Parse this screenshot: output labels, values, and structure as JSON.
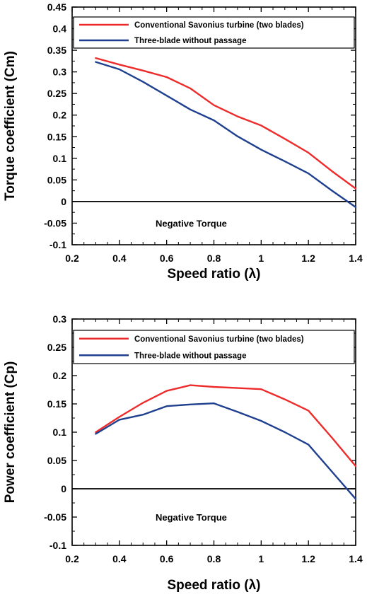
{
  "chart_data": [
    {
      "type": "line",
      "xlabel": "Speed ratio (λ)",
      "ylabel": "Torque coefficient (Cm)",
      "xlim": [
        0.2,
        1.4
      ],
      "ylim": [
        -0.1,
        0.45
      ],
      "xticks": [
        "0.2",
        "0.4",
        "0.6",
        "0.8",
        "1",
        "1.2",
        "1.4"
      ],
      "yticks": [
        "-0.1",
        "-0.05",
        "0",
        "0.05",
        "0.1",
        "0.15",
        "0.2",
        "0.25",
        "0.3",
        "0.35",
        "0.4",
        "0.45"
      ],
      "xtick_values": [
        0.2,
        0.4,
        0.6,
        0.8,
        1.0,
        1.2,
        1.4
      ],
      "ytick_values": [
        -0.1,
        -0.05,
        0,
        0.05,
        0.1,
        0.15,
        0.2,
        0.25,
        0.3,
        0.35,
        0.4,
        0.45
      ],
      "grid": false,
      "legend_position": "top",
      "reference_line_y": 0,
      "annotation": "Negative Torque",
      "series": [
        {
          "name": "Conventional Savonius turbine (two blades)",
          "color": "#ee2b2b",
          "x": [
            0.3,
            0.4,
            0.5,
            0.6,
            0.7,
            0.8,
            0.9,
            1.0,
            1.1,
            1.2,
            1.3,
            1.4
          ],
          "y": [
            0.332,
            0.317,
            0.303,
            0.288,
            0.262,
            0.223,
            0.197,
            0.176,
            0.145,
            0.113,
            0.07,
            0.03
          ]
        },
        {
          "name": "Three-blade without passage",
          "color": "#1f3f8f",
          "x": [
            0.3,
            0.4,
            0.5,
            0.6,
            0.7,
            0.8,
            0.9,
            1.0,
            1.1,
            1.2,
            1.3,
            1.4
          ],
          "y": [
            0.323,
            0.306,
            0.277,
            0.245,
            0.213,
            0.188,
            0.151,
            0.12,
            0.093,
            0.065,
            0.025,
            -0.013
          ]
        }
      ]
    },
    {
      "type": "line",
      "xlabel": "Speed ratio (λ)",
      "ylabel": "Power coefficient (Cp)",
      "xlim": [
        0.2,
        1.4
      ],
      "ylim": [
        -0.1,
        0.3
      ],
      "xticks": [
        "0.2",
        "0.4",
        "0.6",
        "0.8",
        "1",
        "1.2",
        "1.4"
      ],
      "yticks": [
        "-0.1",
        "-0.05",
        "0",
        "0.05",
        "0.1",
        "0.15",
        "0.2",
        "0.25",
        "0.3"
      ],
      "xtick_values": [
        0.2,
        0.4,
        0.6,
        0.8,
        1.0,
        1.2,
        1.4
      ],
      "ytick_values": [
        -0.1,
        -0.05,
        0,
        0.05,
        0.1,
        0.15,
        0.2,
        0.25,
        0.3
      ],
      "grid": false,
      "legend_position": "top",
      "reference_line_y": 0,
      "annotation": "Negative Torque",
      "series": [
        {
          "name": "Conventional Savonius turbine (two blades)",
          "color": "#ee2b2b",
          "x": [
            0.3,
            0.4,
            0.5,
            0.6,
            0.7,
            0.8,
            0.9,
            1.0,
            1.1,
            1.2,
            1.3,
            1.4
          ],
          "y": [
            0.1,
            0.127,
            0.152,
            0.173,
            0.183,
            0.18,
            0.178,
            0.176,
            0.158,
            0.138,
            0.09,
            0.04
          ]
        },
        {
          "name": "Three-blade without passage",
          "color": "#1f3f8f",
          "x": [
            0.3,
            0.4,
            0.5,
            0.6,
            0.7,
            0.8,
            0.9,
            1.0,
            1.1,
            1.2,
            1.3,
            1.4
          ],
          "y": [
            0.097,
            0.122,
            0.131,
            0.146,
            0.149,
            0.151,
            0.136,
            0.12,
            0.1,
            0.078,
            0.03,
            -0.018
          ]
        }
      ]
    }
  ]
}
